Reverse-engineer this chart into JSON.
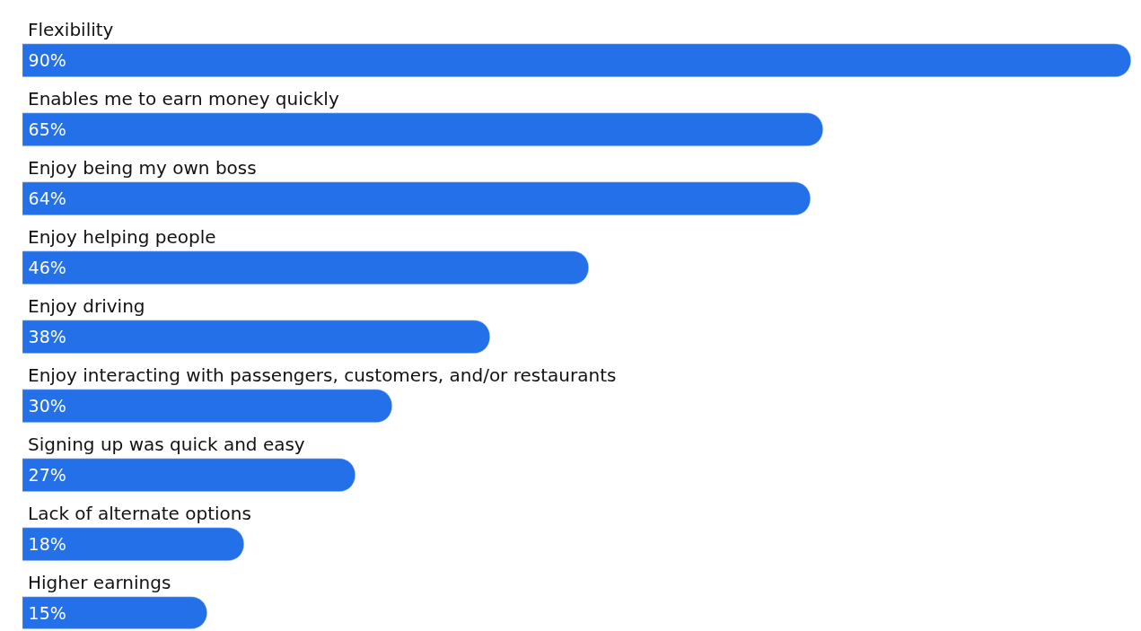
{
  "chart_data": {
    "type": "bar",
    "orientation": "horizontal",
    "categories": [
      "Flexibility",
      "Enables me to earn money quickly",
      "Enjoy being my own boss",
      "Enjoy helping people",
      "Enjoy driving",
      "Enjoy interacting with passengers, customers, and/or restaurants",
      "Signing up was quick and easy",
      "Lack of alternate options",
      "Higher earnings"
    ],
    "values": [
      90,
      65,
      64,
      46,
      38,
      30,
      27,
      18,
      15
    ],
    "value_labels": [
      "90%",
      "65%",
      "64%",
      "46%",
      "38%",
      "30%",
      "27%",
      "18%",
      "15%"
    ],
    "color": "#2470e8"
  }
}
